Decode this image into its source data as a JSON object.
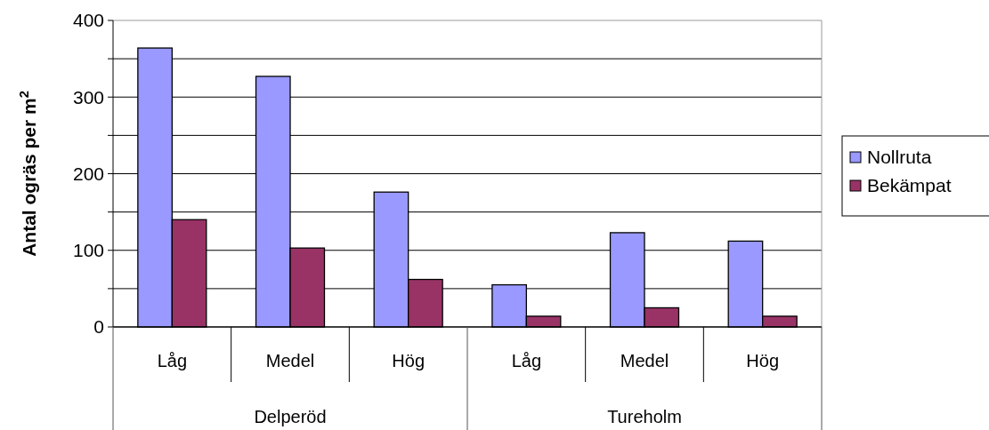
{
  "chart_data": {
    "type": "bar",
    "ylabel": "Antal ogräs per m$^{2}$",
    "categories": [
      "Låg",
      "Medel",
      "Hög",
      "Låg",
      "Medel",
      "Hög"
    ],
    "series": [
      {
        "name": "Nollruta",
        "color": "#9999ff",
        "values": [
          364,
          327,
          176,
          55,
          123,
          112
        ]
      },
      {
        "name": "Bekämpat",
        "color": "#993366",
        "values": [
          140,
          103,
          62,
          14,
          25,
          14
        ]
      }
    ],
    "annotations": [
      "Delperöd",
      "Tureholm"
    ],
    "ylim": [
      0,
      400
    ],
    "yticks": [
      0,
      {
        "value": 50,
        "label": null
      },
      100,
      {
        "value": 150,
        "label": null
      },
      200,
      {
        "value": 250,
        "label": null
      },
      300,
      {
        "value": 350,
        "label": null
      },
      400
    ],
    "grid": "y",
    "legend": "right"
  }
}
